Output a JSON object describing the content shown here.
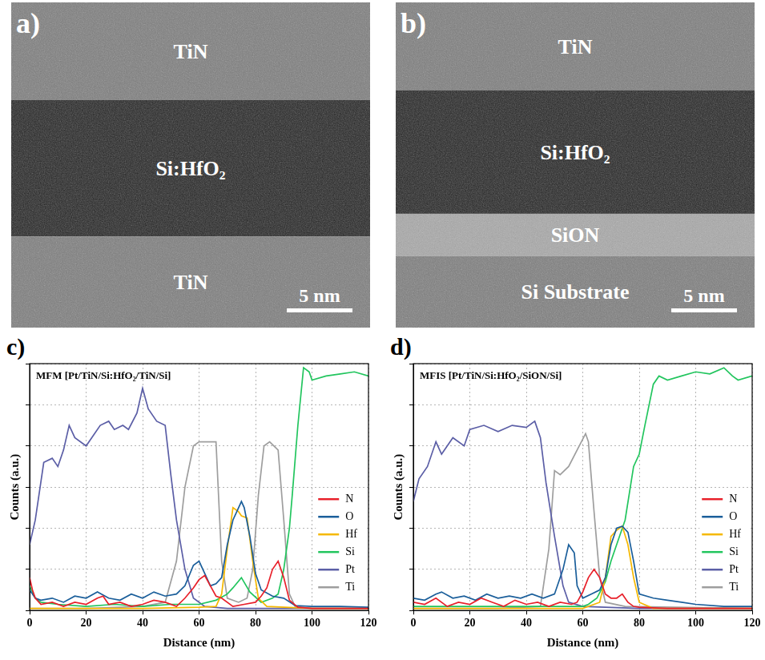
{
  "images": [
    {
      "letter": "a)",
      "layers": [
        "TiN",
        "Si:HfO₂",
        "TiN"
      ],
      "scale_bar": "5 nm"
    },
    {
      "letter": "b)",
      "layers": [
        "TiN",
        "Si:HfO₂",
        "SiON",
        "Si Substrate"
      ],
      "scale_bar": "5 nm"
    }
  ],
  "chart_data": [
    {
      "letter": "c)",
      "type": "line",
      "title": "MFM [Pt/TiN/Si:HfO₂/TiN/Si]",
      "x_label": "Distance (nm)",
      "y_label": "Counts (a.u.)",
      "xlim": [
        0,
        120
      ],
      "xticks": [
        0,
        20,
        40,
        60,
        80,
        100,
        120
      ],
      "ylim": [
        0,
        6
      ],
      "yticks": [
        0,
        1,
        2,
        3,
        4,
        5,
        6
      ],
      "grid": true,
      "legend": "lower right",
      "tick_labels": "x",
      "series": [
        {
          "name": "N",
          "color": "#e8202a",
          "x": [
            0,
            1,
            2,
            4,
            8,
            12,
            16,
            20,
            24,
            26,
            28,
            32,
            36,
            40,
            44,
            48,
            52,
            55,
            58,
            60,
            62,
            64,
            66,
            68,
            72,
            76,
            80,
            82,
            84,
            86,
            88,
            90,
            92,
            95,
            100,
            110,
            120
          ],
          "values": [
            0.8,
            0.5,
            0.3,
            0.15,
            0.2,
            0.1,
            0.2,
            0.15,
            0.3,
            0.35,
            0.15,
            0.2,
            0.1,
            0.15,
            0.25,
            0.2,
            0.1,
            0.3,
            0.55,
            0.75,
            0.85,
            0.6,
            0.35,
            0.3,
            0.1,
            0.15,
            0.2,
            0.35,
            0.55,
            1.0,
            1.2,
            0.8,
            0.25,
            0.08,
            0.05,
            0.05,
            0.05
          ]
        },
        {
          "name": "O",
          "color": "#1a5e9a",
          "x": [
            0,
            2,
            4,
            8,
            12,
            16,
            20,
            24,
            28,
            32,
            36,
            40,
            44,
            48,
            52,
            55,
            58,
            60,
            62,
            64,
            66,
            68,
            70,
            72,
            74,
            75,
            76,
            78,
            80,
            82,
            86,
            90,
            94,
            100,
            110,
            120
          ],
          "values": [
            0.5,
            0.3,
            0.25,
            0.3,
            0.2,
            0.35,
            0.3,
            0.45,
            0.3,
            0.25,
            0.4,
            0.3,
            0.45,
            0.35,
            0.4,
            0.6,
            1.1,
            1.2,
            0.9,
            0.6,
            0.65,
            0.8,
            1.6,
            2.2,
            2.5,
            2.65,
            2.5,
            1.8,
            0.9,
            0.5,
            0.35,
            0.3,
            0.12,
            0.1,
            0.1,
            0.08
          ]
        },
        {
          "name": "Hf",
          "color": "#f5b800",
          "x": [
            0,
            20,
            40,
            60,
            66,
            68,
            70,
            72,
            74,
            75,
            77,
            79,
            81,
            84,
            100,
            120
          ],
          "values": [
            0.05,
            0.05,
            0.05,
            0.08,
            0.1,
            0.4,
            1.5,
            2.5,
            2.4,
            2.3,
            2.25,
            1.2,
            0.3,
            0.1,
            0.05,
            0.05
          ]
        },
        {
          "name": "Si",
          "color": "#22c55e",
          "x": [
            0,
            2,
            4,
            10,
            20,
            30,
            40,
            50,
            60,
            66,
            70,
            72,
            75,
            78,
            82,
            86,
            88,
            90,
            92,
            93,
            95,
            97,
            99,
            100,
            105,
            110,
            115,
            120
          ],
          "values": [
            0.6,
            0.3,
            0.2,
            0.15,
            0.1,
            0.15,
            0.1,
            0.15,
            0.15,
            0.25,
            0.4,
            0.55,
            0.8,
            0.45,
            0.2,
            0.3,
            0.4,
            1.0,
            2.0,
            2.8,
            4.5,
            5.9,
            5.8,
            5.6,
            5.7,
            5.75,
            5.8,
            5.7
          ]
        },
        {
          "name": "Pt",
          "color": "#5b5ea6",
          "x": [
            0,
            2,
            5,
            8,
            10,
            12,
            14,
            16,
            20,
            22,
            25,
            28,
            30,
            33,
            35,
            38,
            40,
            42,
            45,
            48,
            50,
            52,
            55,
            58,
            62,
            70,
            80,
            100,
            120
          ],
          "values": [
            1.6,
            2.2,
            3.6,
            3.7,
            3.5,
            3.9,
            4.5,
            4.2,
            4.0,
            4.2,
            4.5,
            4.6,
            4.4,
            4.5,
            4.4,
            4.8,
            5.4,
            4.9,
            4.6,
            4.5,
            3.3,
            2.2,
            1.0,
            0.3,
            0.1,
            0.05,
            0.05,
            0.05,
            0.05
          ]
        },
        {
          "name": "Ti",
          "color": "#9e9e9e",
          "x": [
            0,
            20,
            40,
            48,
            52,
            55,
            58,
            60,
            63,
            66,
            68,
            70,
            74,
            77,
            79,
            81,
            83,
            85,
            88,
            90,
            92,
            94,
            100,
            120
          ],
          "values": [
            0.05,
            0.05,
            0.1,
            0.2,
            1.2,
            3.0,
            4.0,
            4.1,
            4.1,
            4.1,
            1.2,
            0.3,
            0.2,
            0.3,
            1.0,
            2.8,
            4.0,
            4.1,
            3.9,
            2.2,
            0.4,
            0.1,
            0.05,
            0.05
          ]
        }
      ]
    },
    {
      "letter": "d)",
      "type": "line",
      "title": "MFIS [Pt/TiN/Si:HfO₂/SiON/Si]",
      "x_label": "Distance (nm)",
      "y_label": "Counts (a.u.)",
      "xlim": [
        0,
        120
      ],
      "xticks": [
        0,
        20,
        40,
        60,
        80,
        100,
        120
      ],
      "ylim": [
        0,
        6
      ],
      "yticks": [
        0,
        1,
        2,
        3,
        4,
        5,
        6
      ],
      "grid": true,
      "legend": "lower right",
      "tick_labels": "x",
      "series": [
        {
          "name": "N",
          "color": "#e8202a",
          "x": [
            0,
            4,
            8,
            12,
            16,
            20,
            24,
            28,
            32,
            36,
            40,
            44,
            48,
            52,
            56,
            58,
            60,
            62,
            64,
            66,
            68,
            70,
            72,
            74,
            76,
            78,
            80,
            90,
            100,
            120
          ],
          "values": [
            0.2,
            0.15,
            0.3,
            0.1,
            0.2,
            0.15,
            0.3,
            0.2,
            0.1,
            0.25,
            0.15,
            0.2,
            0.1,
            0.2,
            0.15,
            0.2,
            0.45,
            0.8,
            1.0,
            0.8,
            0.4,
            0.3,
            0.3,
            0.4,
            0.2,
            0.1,
            0.08,
            0.05,
            0.05,
            0.05
          ]
        },
        {
          "name": "O",
          "color": "#1a5e9a",
          "x": [
            0,
            4,
            8,
            10,
            14,
            18,
            22,
            26,
            30,
            34,
            38,
            42,
            46,
            50,
            53,
            55,
            57,
            58,
            60,
            63,
            66,
            68,
            70,
            72,
            74,
            76,
            78,
            80,
            85,
            90,
            95,
            100,
            110,
            120
          ],
          "values": [
            0.3,
            0.25,
            0.4,
            0.45,
            0.3,
            0.35,
            0.25,
            0.4,
            0.3,
            0.35,
            0.3,
            0.4,
            0.3,
            0.4,
            1.0,
            1.6,
            1.4,
            0.6,
            0.3,
            0.4,
            0.5,
            0.8,
            1.6,
            2.0,
            2.05,
            1.9,
            1.2,
            0.4,
            0.3,
            0.25,
            0.2,
            0.15,
            0.1,
            0.1
          ]
        },
        {
          "name": "Hf",
          "color": "#f5b800",
          "x": [
            0,
            30,
            60,
            66,
            68,
            70,
            72,
            74,
            76,
            78,
            80,
            85,
            120
          ],
          "values": [
            0.05,
            0.05,
            0.05,
            0.2,
            0.8,
            1.8,
            1.95,
            2.05,
            1.6,
            0.8,
            0.2,
            0.05,
            0.05
          ]
        },
        {
          "name": "Si",
          "color": "#22c55e",
          "x": [
            0,
            10,
            20,
            30,
            40,
            50,
            60,
            62,
            65,
            68,
            70,
            72,
            75,
            78,
            80,
            82,
            85,
            87,
            90,
            95,
            100,
            105,
            110,
            113,
            115,
            120
          ],
          "values": [
            0.1,
            0.1,
            0.1,
            0.1,
            0.1,
            0.1,
            0.1,
            0.15,
            0.3,
            0.7,
            1.2,
            1.6,
            2.2,
            3.5,
            3.8,
            4.5,
            5.5,
            5.7,
            5.6,
            5.7,
            5.8,
            5.75,
            5.9,
            5.7,
            5.6,
            5.7
          ]
        },
        {
          "name": "Pt",
          "color": "#5b5ea6",
          "x": [
            0,
            2,
            5,
            8,
            10,
            14,
            18,
            20,
            25,
            30,
            35,
            40,
            43,
            45,
            47,
            50,
            53,
            55,
            60,
            80,
            120
          ],
          "values": [
            2.65,
            3.2,
            3.5,
            4.1,
            3.8,
            4.2,
            4.0,
            4.4,
            4.5,
            4.35,
            4.5,
            4.45,
            4.6,
            4.2,
            3.1,
            1.8,
            0.6,
            0.2,
            0.1,
            0.05,
            0.05
          ]
        },
        {
          "name": "Ti",
          "color": "#9e9e9e",
          "x": [
            0,
            30,
            45,
            48,
            50,
            52,
            55,
            58,
            61,
            62,
            64,
            66,
            68,
            75,
            120
          ],
          "values": [
            0.05,
            0.05,
            0.1,
            1.5,
            3.4,
            3.3,
            3.5,
            3.9,
            4.3,
            4.1,
            2.4,
            0.8,
            0.2,
            0.1,
            0.05
          ]
        }
      ]
    }
  ]
}
